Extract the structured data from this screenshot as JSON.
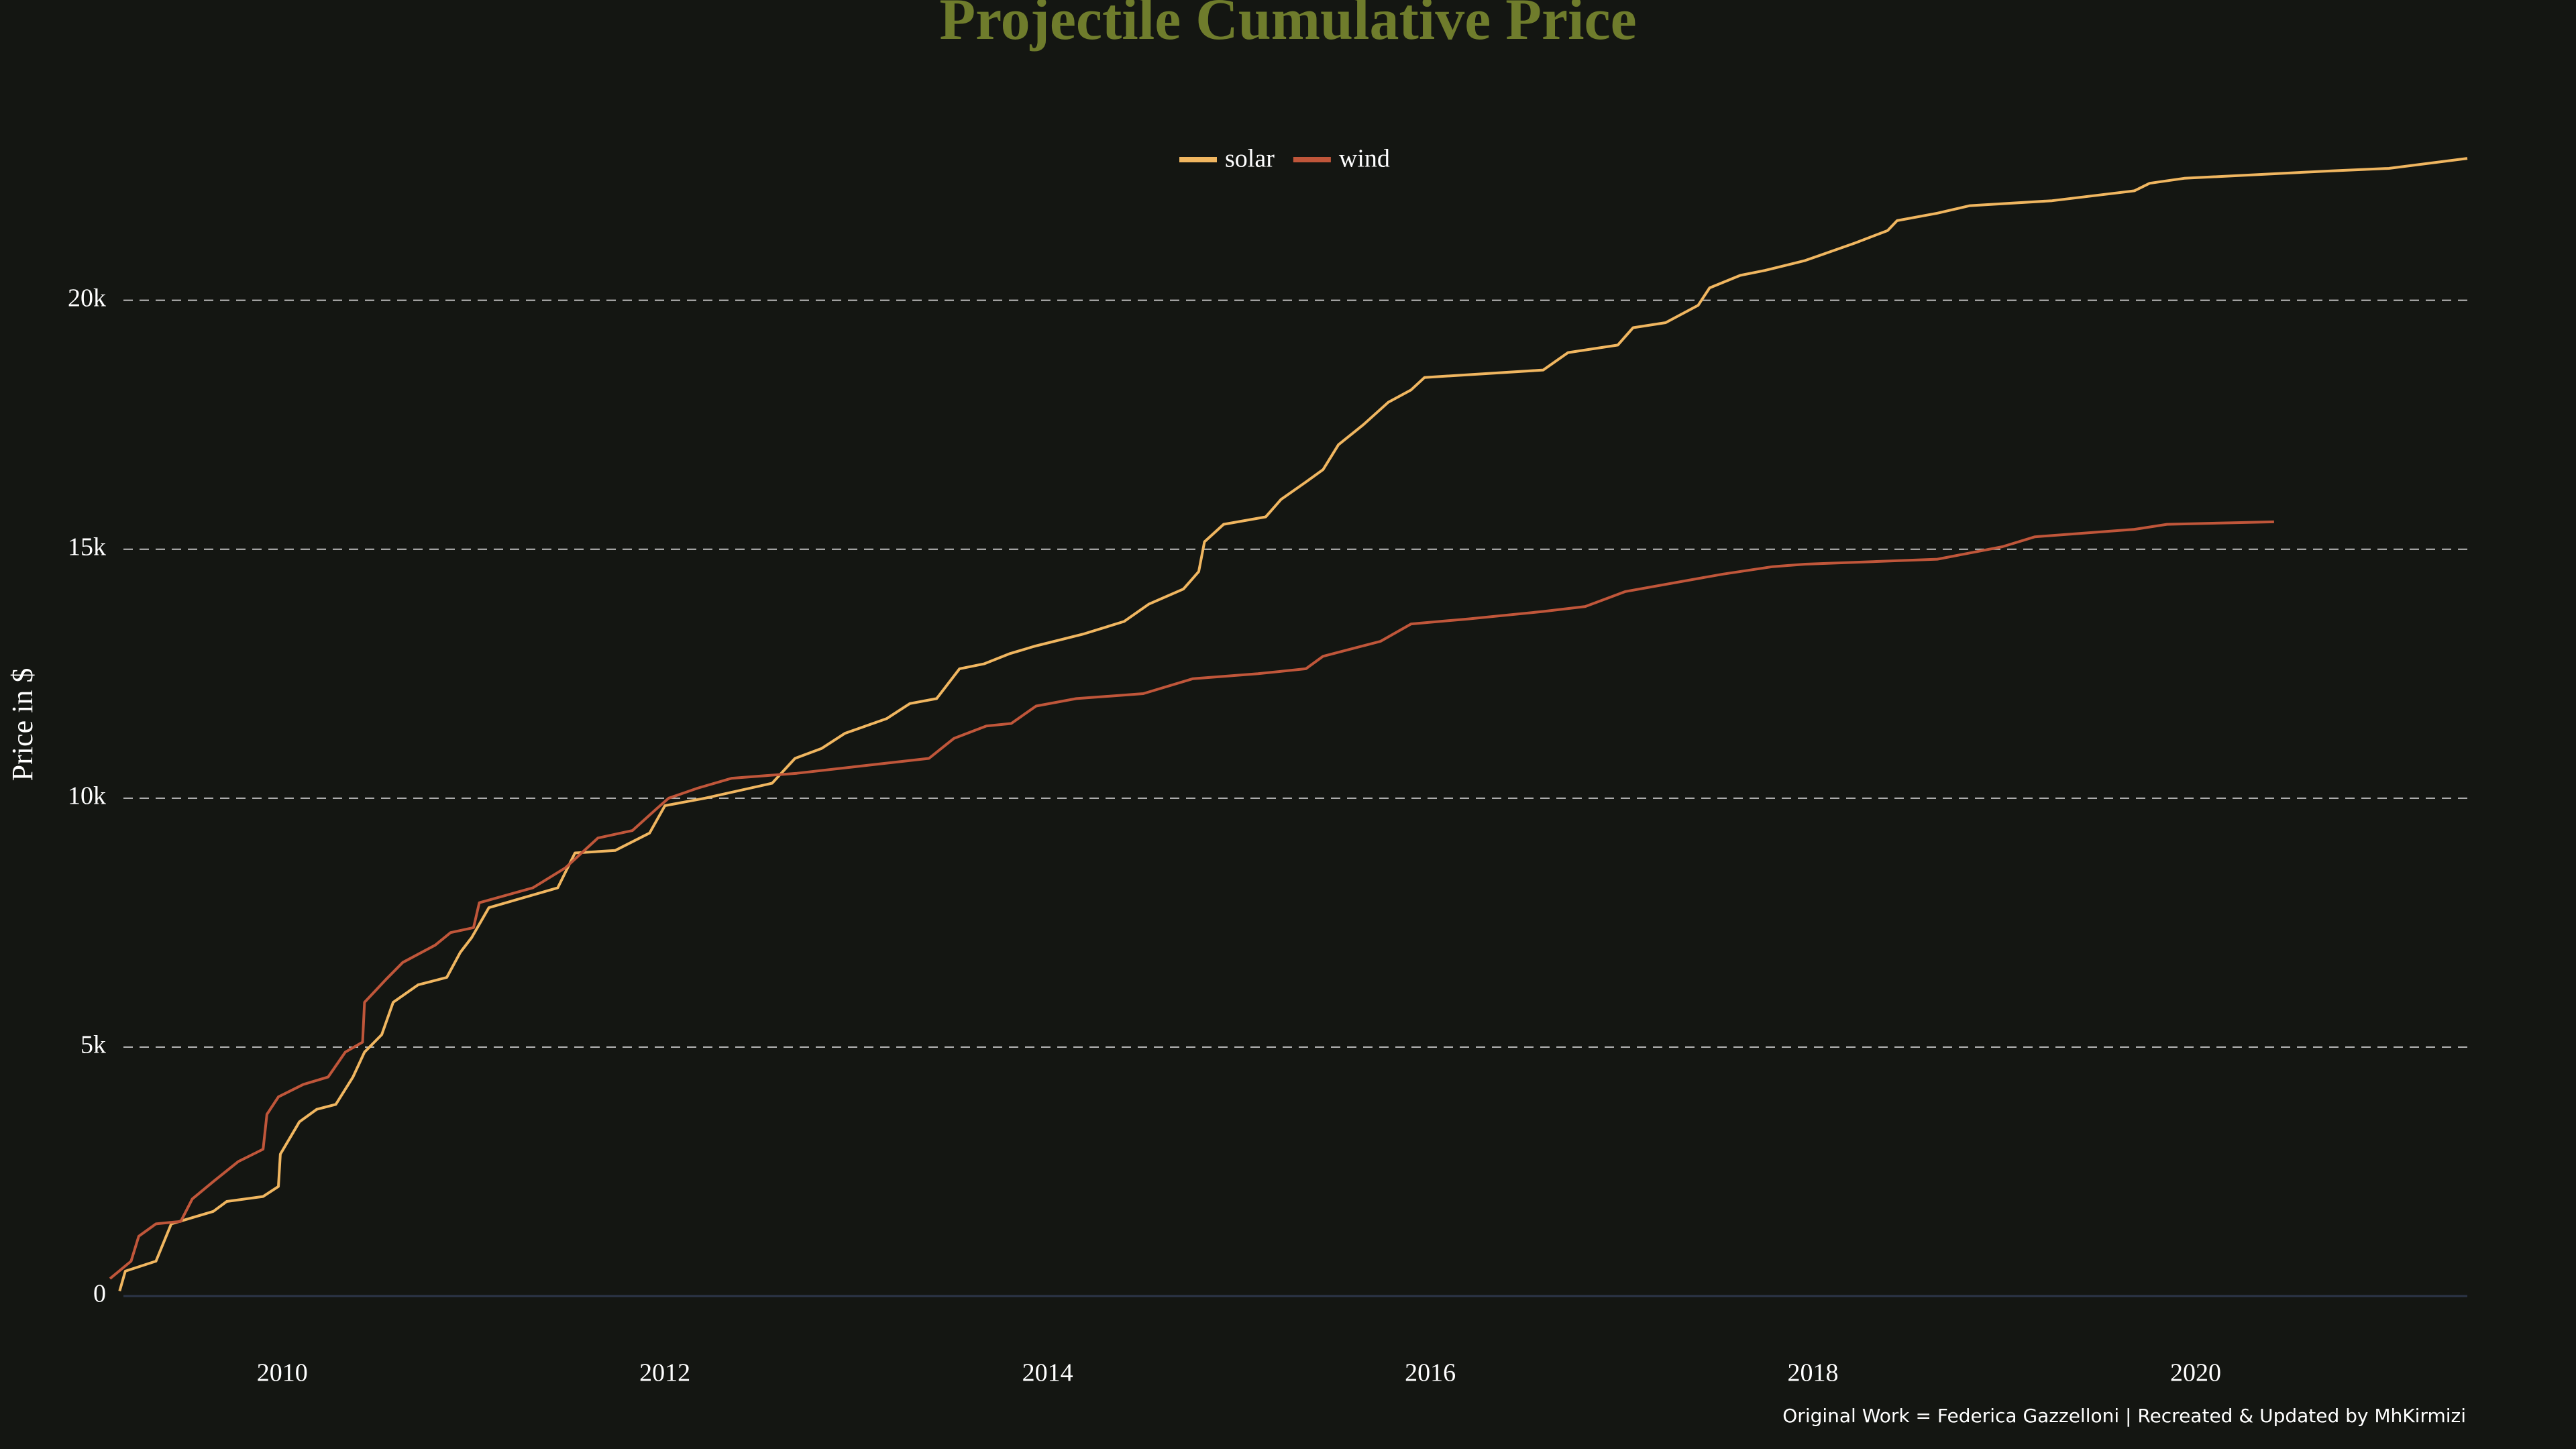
{
  "chart_data": {
    "type": "line",
    "title": "Projectile Cumulative Price",
    "ylabel": "Price in $",
    "caption": "Original Work = Federica Gazzelloni  | Recreated & Updated by MhKirmizi",
    "xlim": [
      2009.1,
      2021.42
    ],
    "xticks": [
      2010,
      2012,
      2014,
      2016,
      2018,
      2020
    ],
    "ylim": [
      0,
      23000
    ],
    "yticks": [
      0,
      {
        "value": 5000,
        "label": "5k"
      },
      {
        "value": 10000,
        "label": "10k"
      },
      {
        "value": 15000,
        "label": "15k"
      },
      {
        "value": 20000,
        "label": "20k"
      }
    ],
    "grid": true,
    "legend": "top",
    "series": [
      {
        "name": "solar",
        "color": "#f0b660",
        "x": [
          2009.15,
          2009.18,
          2009.34,
          2009.42,
          2009.64,
          2009.71,
          2009.9,
          2009.98,
          2009.99,
          2010.09,
          2010.18,
          2010.28,
          2010.37,
          2010.43,
          2010.52,
          2010.58,
          2010.71,
          2010.86,
          2010.93,
          2010.99,
          2011.08,
          2011.44,
          2011.53,
          2011.74,
          2011.92,
          2012.0,
          2012.21,
          2012.56,
          2012.68,
          2012.82,
          2012.94,
          2013.16,
          2013.28,
          2013.42,
          2013.54,
          2013.67,
          2013.8,
          2013.93,
          2014.19,
          2014.4,
          2014.53,
          2014.71,
          2014.79,
          2014.82,
          2014.92,
          2015.14,
          2015.22,
          2015.35,
          2015.44,
          2015.52,
          2015.65,
          2015.78,
          2015.9,
          2015.97,
          2016.59,
          2016.72,
          2016.98,
          2017.06,
          2017.23,
          2017.4,
          2017.46,
          2017.62,
          2017.75,
          2017.96,
          2018.22,
          2018.39,
          2018.44,
          2018.65,
          2018.82,
          2019.25,
          2019.68,
          2019.76,
          2019.94,
          2020.71,
          2021.01,
          2021.42
        ],
        "values": [
          100,
          500,
          700,
          1450,
          1700,
          1900,
          2000,
          2200,
          2850,
          3500,
          3750,
          3850,
          4400,
          4900,
          5250,
          5900,
          6250,
          6400,
          6900,
          7200,
          7800,
          8200,
          8900,
          8950,
          9300,
          9850,
          10000,
          10300,
          10800,
          11000,
          11300,
          11600,
          11900,
          12000,
          12600,
          12700,
          12900,
          13050,
          13300,
          13550,
          13900,
          14200,
          14550,
          15150,
          15500,
          15650,
          16000,
          16350,
          16600,
          17100,
          17500,
          17950,
          18200,
          18450,
          18600,
          18950,
          19100,
          19450,
          19550,
          19900,
          20250,
          20500,
          20600,
          20800,
          21150,
          21400,
          21600,
          21750,
          21900,
          22000,
          22200,
          22350,
          22450,
          22600,
          22650,
          22850
        ]
      },
      {
        "name": "wind",
        "color": "#c0563a",
        "x": [
          2009.1,
          2009.21,
          2009.25,
          2009.34,
          2009.47,
          2009.53,
          2009.64,
          2009.77,
          2009.9,
          2009.92,
          2009.98,
          2010.11,
          2010.24,
          2010.33,
          2010.42,
          2010.43,
          2010.54,
          2010.63,
          2010.8,
          2010.88,
          2011.0,
          2011.03,
          2011.31,
          2011.48,
          2011.65,
          2011.83,
          2011.96,
          2012.02,
          2012.17,
          2012.35,
          2012.69,
          2013.38,
          2013.51,
          2013.68,
          2013.81,
          2013.94,
          2014.15,
          2014.5,
          2014.76,
          2015.1,
          2015.35,
          2015.44,
          2015.74,
          2015.9,
          2016.2,
          2016.59,
          2016.81,
          2017.02,
          2017.53,
          2017.79,
          2017.96,
          2018.65,
          2018.99,
          2019.16,
          2019.68,
          2019.85,
          2020.41
        ],
        "values": [
          350,
          700,
          1200,
          1450,
          1500,
          1950,
          2300,
          2700,
          2950,
          3650,
          4000,
          4250,
          4400,
          4900,
          5100,
          5900,
          6350,
          6700,
          7050,
          7300,
          7400,
          7900,
          8200,
          8600,
          9200,
          9350,
          9800,
          10000,
          10200,
          10400,
          10500,
          10800,
          11200,
          11450,
          11500,
          11850,
          12000,
          12100,
          12400,
          12500,
          12600,
          12850,
          13150,
          13500,
          13600,
          13750,
          13850,
          14150,
          14500,
          14650,
          14700,
          14800,
          15050,
          15250,
          15400,
          15500,
          15550
        ]
      }
    ]
  }
}
